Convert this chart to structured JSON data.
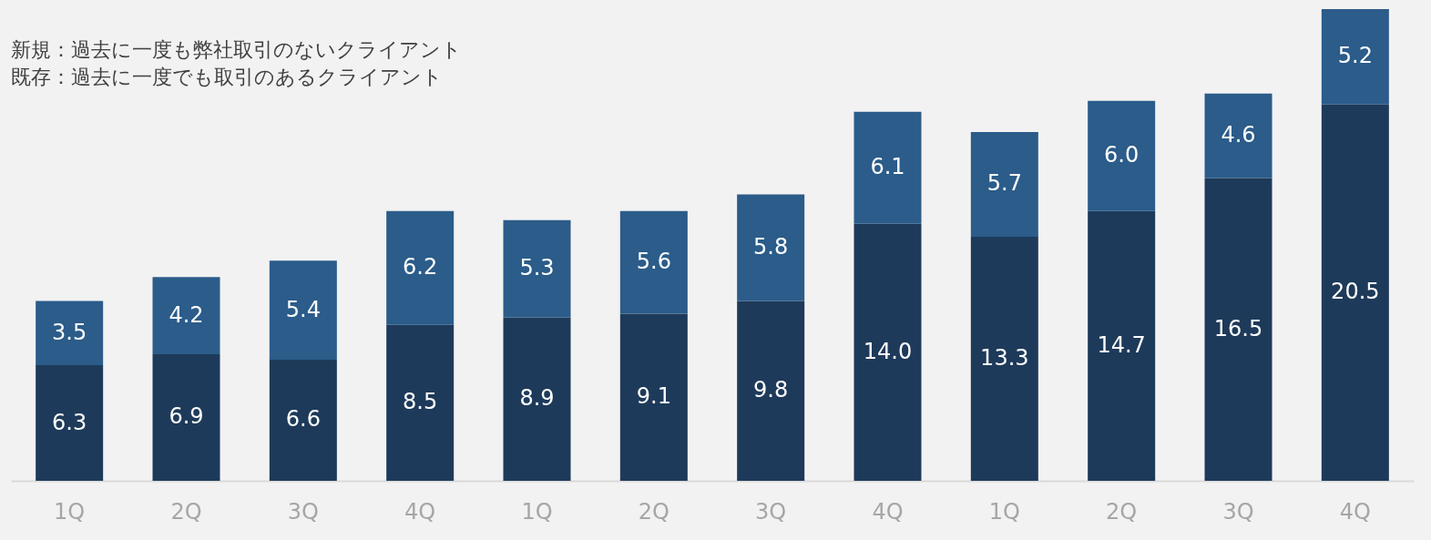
{
  "chart_data": {
    "type": "bar",
    "stacked": true,
    "categories": [
      "1Q",
      "2Q",
      "3Q",
      "4Q",
      "1Q",
      "2Q",
      "3Q",
      "4Q",
      "1Q",
      "2Q",
      "3Q",
      "4Q"
    ],
    "series": [
      {
        "color": "#1e3a5a",
        "values": [
          6.3,
          6.9,
          6.6,
          8.5,
          8.9,
          9.1,
          9.8,
          14.0,
          13.3,
          14.7,
          16.5,
          20.5
        ],
        "value_labels": [
          "6.3",
          "6.9",
          "6.6",
          "8.5",
          "8.9",
          "9.1",
          "9.8",
          "14.0",
          "13.3",
          "14.7",
          "16.5",
          "20.5"
        ]
      },
      {
        "color": "#2b5c8a",
        "values": [
          3.5,
          4.2,
          5.4,
          6.2,
          5.3,
          5.6,
          5.8,
          6.1,
          5.7,
          6.0,
          4.6,
          5.2
        ],
        "value_labels": [
          "3.5",
          "4.2",
          "5.4",
          "6.2",
          "5.3",
          "5.6",
          "5.8",
          "6.1",
          "5.7",
          "6.0",
          "4.6",
          "5.2"
        ]
      }
    ],
    "annotations": [
      "新規：過去に一度も弊社取引のないクライアント",
      "既存：過去に一度でも取引のあるクライアント"
    ],
    "tick_labels": "x"
  }
}
